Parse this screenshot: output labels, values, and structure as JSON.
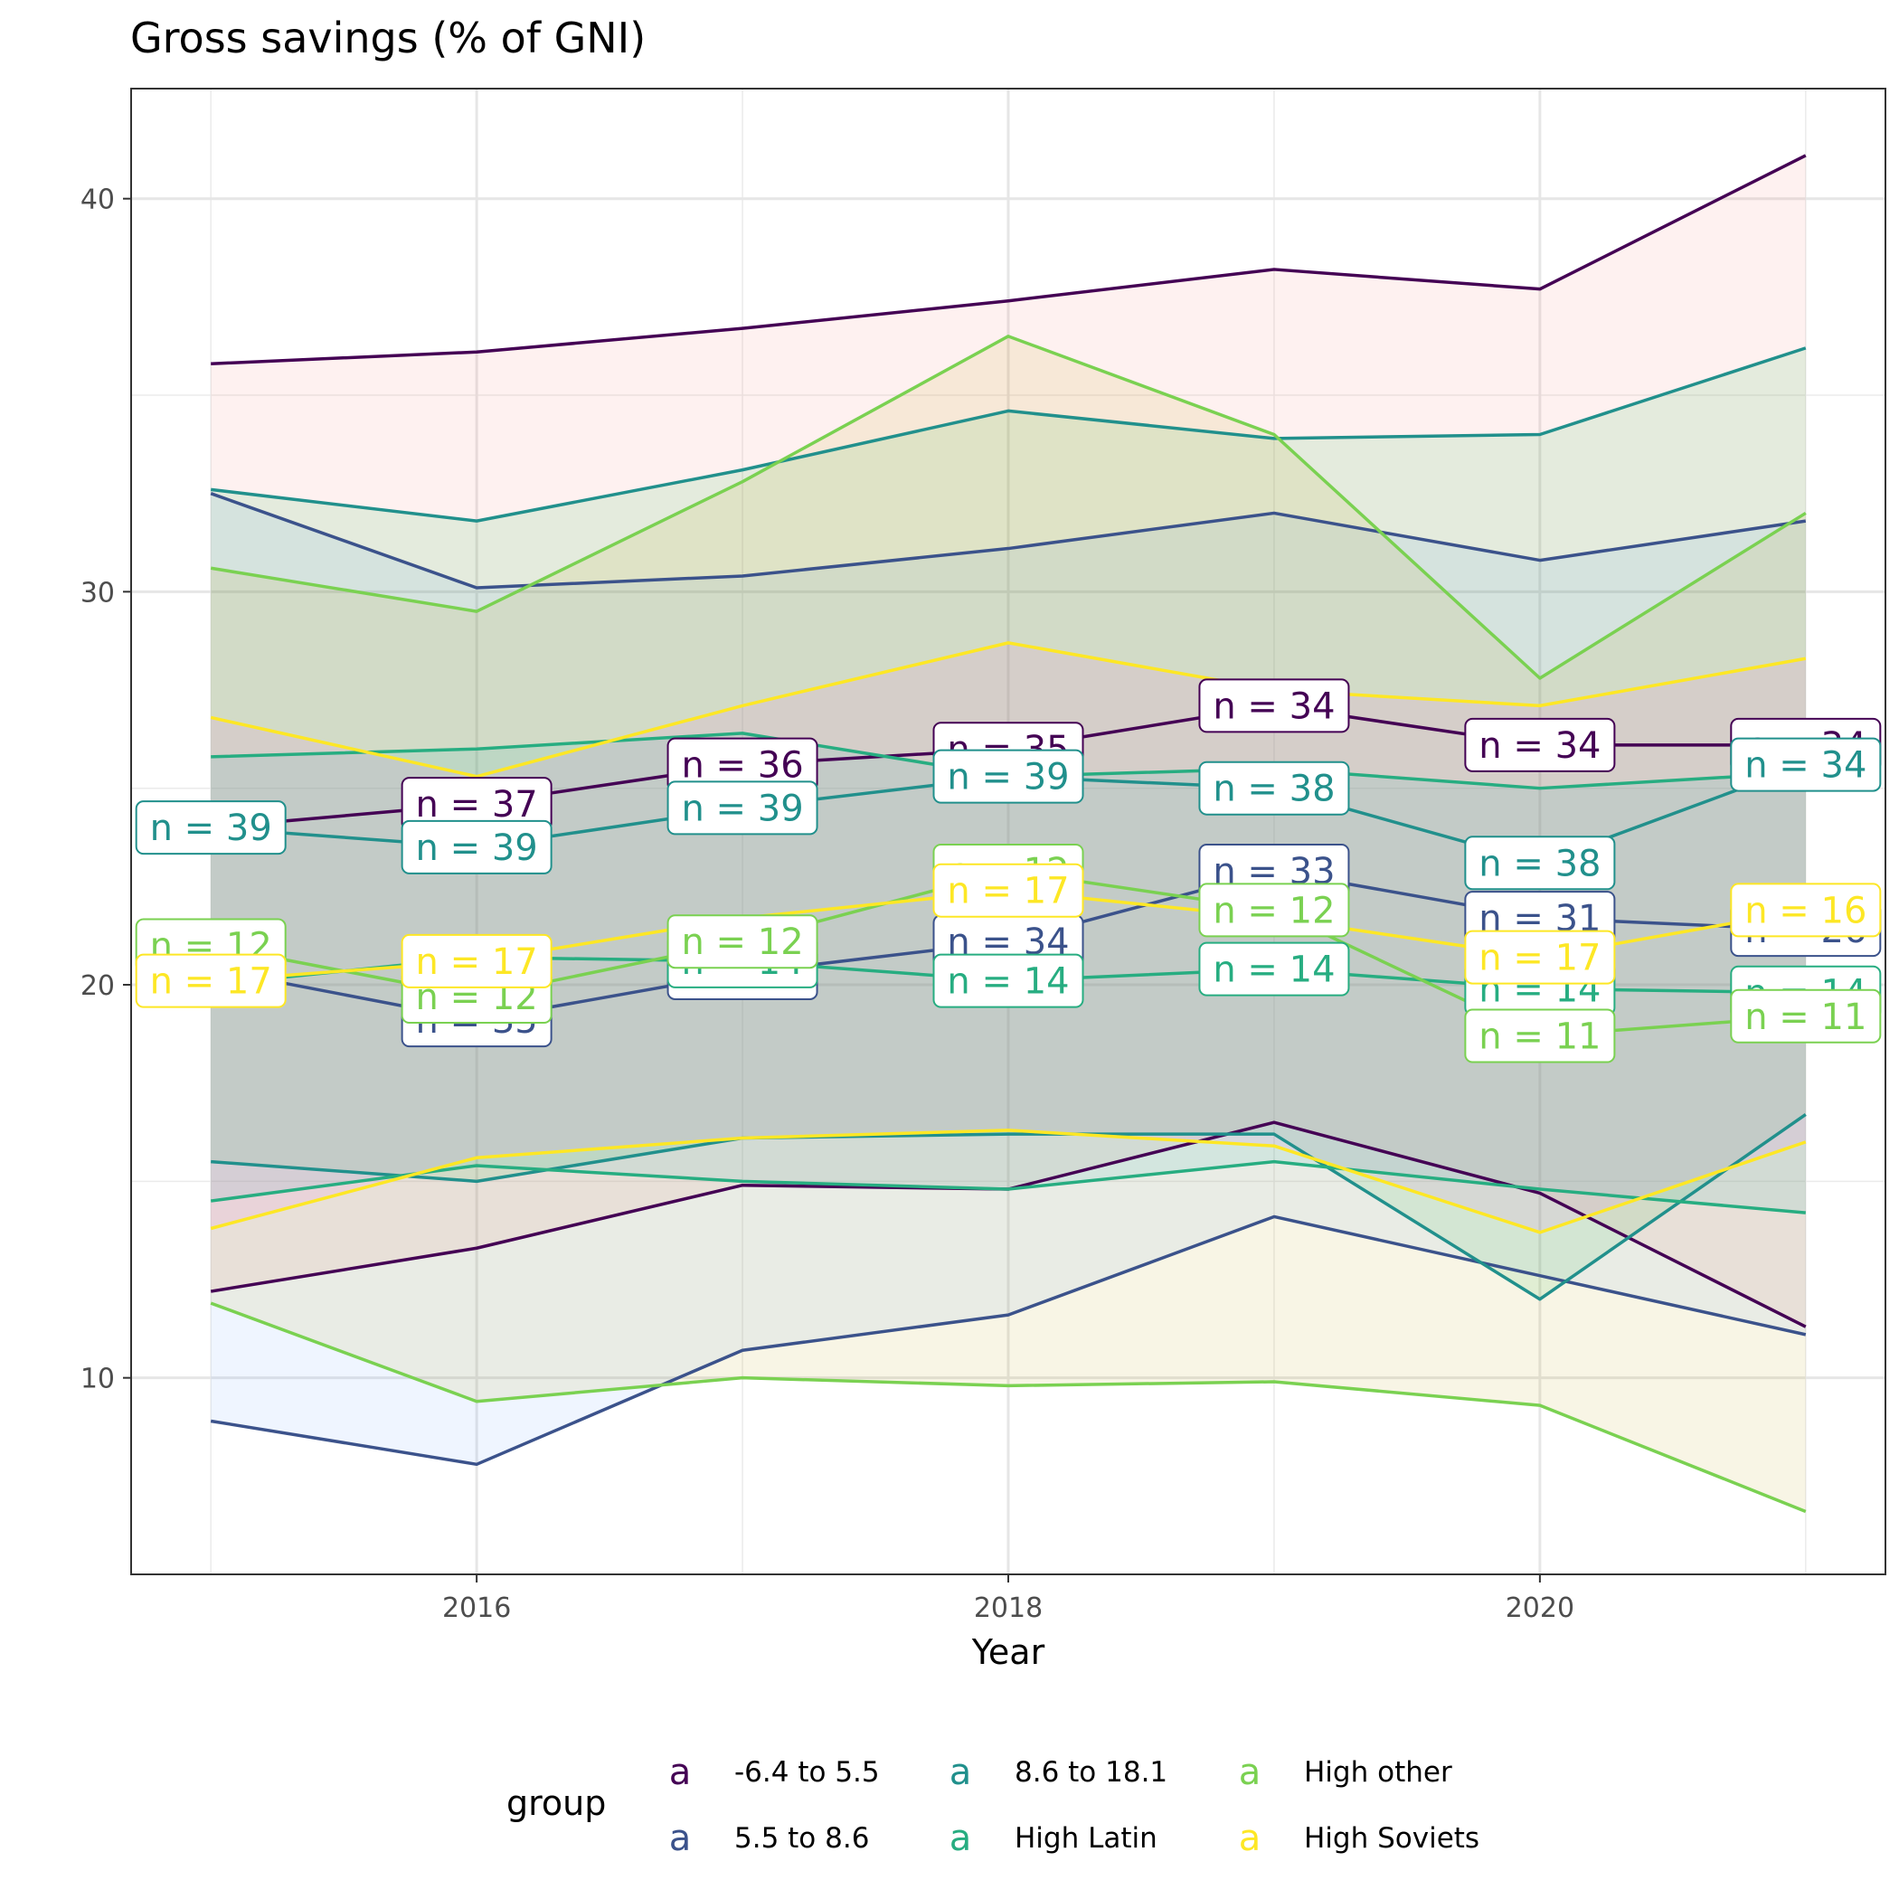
{
  "chart_data": {
    "type": "line",
    "title": "Gross savings (% of GNI)",
    "xlabel": "Year",
    "ylabel": "",
    "x": [
      2015,
      2016,
      2017,
      2018,
      2019,
      2020,
      2021
    ],
    "x_ticks": [
      2016,
      2018,
      2020
    ],
    "y_ticks": [
      10,
      20,
      30,
      40
    ],
    "xlim": [
      2014.7,
      2021.3
    ],
    "ylim": [
      5,
      42.8
    ],
    "grid": true,
    "legend": {
      "title": "group",
      "position": "bottom",
      "key_glyph": "a"
    },
    "series": [
      {
        "name": "-6.4 to 5.5",
        "color": "#440154",
        "band_fill": "#F8766D",
        "mean": [
          24.0,
          24.6,
          25.6,
          26.0,
          27.1,
          26.1,
          26.1
        ],
        "upper": [
          35.8,
          36.1,
          36.7,
          37.4,
          38.2,
          37.7,
          41.1
        ],
        "lower": [
          12.2,
          13.3,
          14.9,
          14.8,
          16.5,
          14.7,
          11.3
        ],
        "n": [
          null,
          37,
          36,
          35,
          34,
          34,
          34
        ]
      },
      {
        "name": "5.5 to 8.6",
        "color": "#3B528B",
        "band_fill": "#619CFF",
        "mean": [
          20.4,
          19.1,
          20.3,
          21.1,
          22.9,
          21.7,
          21.4
        ],
        "upper": [
          32.5,
          30.1,
          30.4,
          31.1,
          32.0,
          30.8,
          31.8
        ],
        "lower": [
          8.9,
          7.8,
          10.7,
          11.6,
          14.1,
          12.6,
          11.1
        ],
        "n": [
          null,
          35,
          37,
          34,
          33,
          31,
          26
        ]
      },
      {
        "name": "8.6 to 18.1",
        "color": "#21908C",
        "band_fill": "#00BA38",
        "mean": [
          24.0,
          23.5,
          24.5,
          25.3,
          25.0,
          23.1,
          25.6
        ],
        "upper": [
          32.6,
          31.8,
          33.1,
          34.6,
          33.9,
          34.0,
          36.2
        ],
        "lower": [
          15.5,
          15.0,
          16.1,
          16.2,
          16.2,
          12.0,
          16.7
        ],
        "n": [
          39,
          39,
          39,
          39,
          38,
          38,
          34
        ]
      },
      {
        "name": "High Latin",
        "color": "#27AD81",
        "band_fill": "#00BFC4",
        "mean": [
          20.0,
          20.7,
          20.6,
          20.1,
          20.4,
          19.9,
          19.8
        ],
        "upper": [
          25.8,
          26.0,
          26.4,
          25.3,
          25.5,
          25.0,
          25.4
        ],
        "lower": [
          14.5,
          15.4,
          15.0,
          14.8,
          15.5,
          14.8,
          14.2
        ],
        "n": [
          null,
          null,
          14,
          14,
          14,
          14,
          14
        ]
      },
      {
        "name": "High other",
        "color": "#7AD151",
        "band_fill": "#B79F00",
        "mean": [
          21.0,
          19.7,
          21.1,
          22.9,
          21.9,
          18.7,
          19.2
        ],
        "upper": [
          30.6,
          29.5,
          32.8,
          36.5,
          34.0,
          27.8,
          32.0
        ],
        "lower": [
          11.9,
          9.4,
          10.0,
          9.8,
          9.9,
          9.3,
          6.6
        ],
        "n": [
          12,
          12,
          12,
          12,
          12,
          11,
          11
        ]
      },
      {
        "name": "High Soviets",
        "color": "#FDE725",
        "band_fill": "#F564E3",
        "mean": [
          20.1,
          20.6,
          21.7,
          22.4,
          21.7,
          20.7,
          21.9
        ],
        "upper": [
          26.8,
          25.3,
          27.1,
          28.7,
          27.5,
          27.1,
          28.3
        ],
        "lower": [
          13.8,
          15.6,
          16.1,
          16.3,
          15.9,
          13.7,
          16.0
        ],
        "n": [
          17,
          17,
          null,
          17,
          null,
          17,
          16
        ]
      }
    ]
  }
}
